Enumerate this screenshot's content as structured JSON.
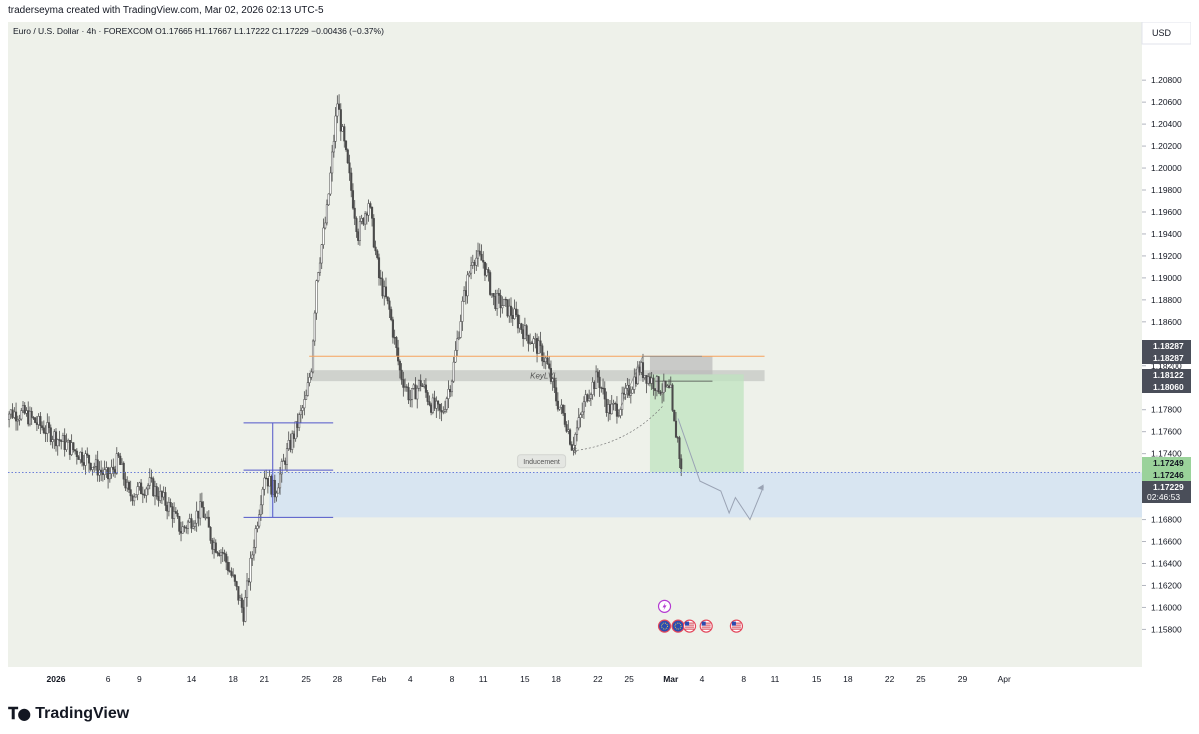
{
  "credit": "traderseyma created with TradingView.com, Mar 02, 2026 02:13 UTC-5",
  "brand": {
    "name": "TradingView",
    "icon": "tradingview-logo-icon"
  },
  "colors": {
    "up_candle": "#4a4a4a",
    "down_candle": "#4a4a4a",
    "key_level": "#f5a25d",
    "key_zone": "#c9ccc8",
    "demand_zone": "#d3e3f2",
    "target_zone": "#bfe3bf",
    "range_lines": "#5156c9",
    "current_price": "#5a6fd6",
    "price_badge_dark": "#4a4e59",
    "price_badge_green": "#9ad29a"
  },
  "chart_data": {
    "type": "candlestick",
    "legend_text": "Euro / U.S. Dollar · 4h · FOREXCOM  O1.17665  H1.17667  L1.17222  C1.17229  −0.00436 (−0.37%)",
    "ohlc": {
      "open": 1.17665,
      "high": 1.17667,
      "low": 1.17222,
      "close": 1.17229,
      "change": -0.00436,
      "change_pct": -0.37
    },
    "currency_label": "USD",
    "ylim": [
      1.1574,
      1.2102
    ],
    "y_ticks": [
      "1.20800",
      "1.20600",
      "1.20400",
      "1.20200",
      "1.20000",
      "1.19800",
      "1.19600",
      "1.19400",
      "1.19200",
      "1.19000",
      "1.18800",
      "1.18600",
      "1.18400",
      "1.18200",
      "1.18000",
      "1.17800",
      "1.17600",
      "1.17400",
      "1.17200",
      "1.17000",
      "1.16800",
      "1.16600",
      "1.16400",
      "1.16200",
      "1.16000",
      "1.15800"
    ],
    "x_ticks": [
      {
        "label": "2026",
        "day": 0,
        "bold": true
      },
      {
        "label": "6",
        "day": 5
      },
      {
        "label": "9",
        "day": 8
      },
      {
        "label": "14",
        "day": 13
      },
      {
        "label": "18",
        "day": 17
      },
      {
        "label": "21",
        "day": 20
      },
      {
        "label": "25",
        "day": 24
      },
      {
        "label": "28",
        "day": 27
      },
      {
        "label": "Feb",
        "day": 31
      },
      {
        "label": "4",
        "day": 34
      },
      {
        "label": "8",
        "day": 38
      },
      {
        "label": "11",
        "day": 41
      },
      {
        "label": "15",
        "day": 45
      },
      {
        "label": "18",
        "day": 48
      },
      {
        "label": "22",
        "day": 52
      },
      {
        "label": "25",
        "day": 55
      },
      {
        "label": "Mar",
        "day": 59,
        "bold": true
      },
      {
        "label": "4",
        "day": 62
      },
      {
        "label": "8",
        "day": 66
      },
      {
        "label": "11",
        "day": 69
      },
      {
        "label": "15",
        "day": 73
      },
      {
        "label": "18",
        "day": 76
      },
      {
        "label": "22",
        "day": 80
      },
      {
        "label": "25",
        "day": 83
      },
      {
        "label": "29",
        "day": 87
      },
      {
        "label": "Apr",
        "day": 91
      }
    ],
    "price_path": [
      [
        -5,
        1.1778
      ],
      [
        -3,
        1.1776
      ],
      [
        -1,
        1.1762
      ],
      [
        1,
        1.1748
      ],
      [
        3,
        1.1735
      ],
      [
        5,
        1.1718
      ],
      [
        6,
        1.1735
      ],
      [
        7,
        1.1702
      ],
      [
        9,
        1.1712
      ],
      [
        11,
        1.169
      ],
      [
        12,
        1.167
      ],
      [
        14,
        1.169
      ],
      [
        15,
        1.166
      ],
      [
        16,
        1.165
      ],
      [
        17,
        1.1625
      ],
      [
        18,
        1.1595
      ],
      [
        19,
        1.166
      ],
      [
        20,
        1.1722
      ],
      [
        21,
        1.1705
      ],
      [
        22,
        1.1736
      ],
      [
        23,
        1.1762
      ],
      [
        24,
        1.179
      ],
      [
        24.5,
        1.182
      ],
      [
        25,
        1.19
      ],
      [
        26,
        1.196
      ],
      [
        27,
        1.206
      ],
      [
        28,
        1.2
      ],
      [
        29,
        1.194
      ],
      [
        30,
        1.197
      ],
      [
        31,
        1.19
      ],
      [
        32,
        1.187
      ],
      [
        33,
        1.1815
      ],
      [
        34,
        1.179
      ],
      [
        35,
        1.1805
      ],
      [
        36,
        1.1785
      ],
      [
        37,
        1.1775
      ],
      [
        38,
        1.181
      ],
      [
        39,
        1.1875
      ],
      [
        40,
        1.192
      ],
      [
        41,
        1.1915
      ],
      [
        42,
        1.188
      ],
      [
        43,
        1.1875
      ],
      [
        44,
        1.1865
      ],
      [
        45,
        1.185
      ],
      [
        46,
        1.184
      ],
      [
        47,
        1.1825
      ],
      [
        48,
        1.179
      ],
      [
        49,
        1.1768
      ],
      [
        49.5,
        1.1748
      ],
      [
        50,
        1.1762
      ],
      [
        51,
        1.1795
      ],
      [
        52,
        1.181
      ],
      [
        53,
        1.178
      ],
      [
        54,
        1.1782
      ],
      [
        55,
        1.1798
      ],
      [
        56,
        1.1818
      ],
      [
        57,
        1.1808
      ],
      [
        58,
        1.18
      ],
      [
        59,
        1.1795
      ],
      [
        59.2,
        1.177
      ],
      [
        59.7,
        1.1752
      ],
      [
        60,
        1.17229
      ]
    ],
    "current_price": 1.17229,
    "countdown": "02:46:53",
    "price_badges": [
      {
        "label": "1.18287",
        "style": "dark"
      },
      {
        "label": "1.18287",
        "style": "dark"
      },
      {
        "label": "1.18122",
        "style": "dark"
      },
      {
        "label": "1.18060",
        "style": "dark"
      },
      {
        "label": "1.17249",
        "style": "green"
      },
      {
        "label": "1.17246",
        "style": "green"
      },
      {
        "label": "1.17229",
        "style": "dark"
      }
    ],
    "annotations": {
      "key_level_label": "KeyLVL",
      "inducement_label": "Inducement",
      "sweep_marker": "$",
      "key_level_price": 1.18287,
      "key_zone": [
        1.1806,
        1.1816
      ],
      "demand_zone": [
        1.1682,
        1.17229
      ],
      "range_top": 1.1768,
      "range_mid": 1.1725,
      "range_bottom": 1.1682,
      "target_zone": [
        1.17229,
        1.18122
      ],
      "stop_zone": [
        1.18122,
        1.18287
      ]
    },
    "event_icons": [
      "lightning-icon",
      "eu-flag-icon",
      "eu-flag-icon",
      "us-flag-icon",
      "us-flag-icon",
      "us-flag-icon"
    ]
  }
}
